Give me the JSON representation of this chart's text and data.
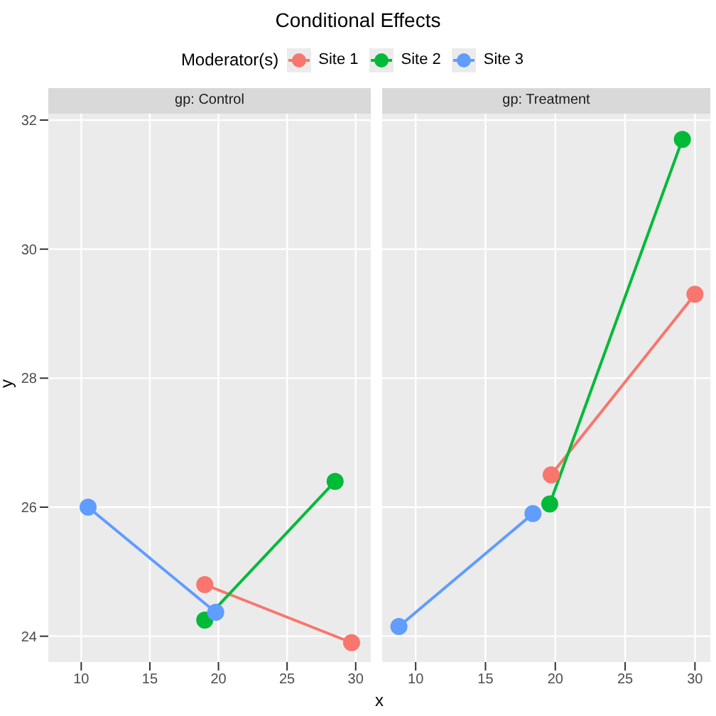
{
  "chart_data": [
    {
      "type": "line",
      "title": "Conditional Effects",
      "subtitle": "gp: Control",
      "xlabel": "x",
      "ylabel": "y",
      "legend_title": "Moderator(s)",
      "legend": "top",
      "grid": true,
      "marker": "circle",
      "line_style": "solid",
      "xlim": [
        7.6,
        31.1
      ],
      "xticks": [
        10,
        15,
        20,
        25,
        30
      ],
      "ylim": [
        23.6,
        32.1
      ],
      "yticks": [
        24,
        26,
        28,
        30,
        32
      ],
      "series": [
        {
          "name": "Site 1",
          "color": "#f8766d",
          "x": [
            19.0,
            29.7
          ],
          "values": [
            24.8,
            23.9
          ]
        },
        {
          "name": "Site 2",
          "color": "#00ba38",
          "x": [
            19.0,
            28.5
          ],
          "values": [
            24.25,
            26.4
          ]
        },
        {
          "name": "Site 3",
          "color": "#619cff",
          "x": [
            10.5,
            19.8
          ],
          "values": [
            26.0,
            24.37
          ]
        }
      ]
    },
    {
      "type": "line",
      "subtitle": "gp: Treatment",
      "grid": true,
      "marker": "circle",
      "line_style": "solid",
      "tick_labels": "x",
      "xlim": [
        7.6,
        31.1
      ],
      "xticks": [
        10,
        15,
        20,
        25,
        30
      ],
      "ylim": [
        23.6,
        32.1
      ],
      "yticks": [
        24,
        26,
        28,
        30,
        32
      ],
      "series": [
        {
          "color": "#f8766d",
          "x": [
            19.7,
            30.0
          ],
          "values": [
            26.5,
            29.3
          ]
        },
        {
          "color": "#00ba38",
          "x": [
            19.6,
            29.1
          ],
          "values": [
            26.05,
            31.7
          ]
        },
        {
          "color": "#619cff",
          "x": [
            8.8,
            18.4
          ],
          "values": [
            24.15,
            25.9
          ]
        }
      ]
    }
  ]
}
